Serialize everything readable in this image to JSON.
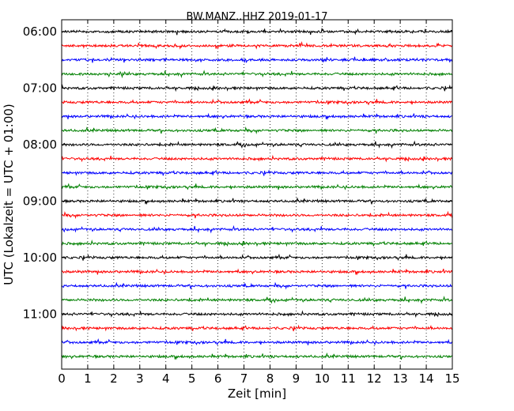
{
  "chart_data": {
    "type": "line",
    "title": "BW.MANZ..HHZ 2019-01-17",
    "xlabel": "Zeit  [min]",
    "ylabel": "UTC (Lokalzeit = UTC + 01:00)",
    "xlim": [
      0,
      15
    ],
    "x_ticks": [
      "0",
      "1",
      "2",
      "3",
      "4",
      "5",
      "6",
      "7",
      "8",
      "9",
      "10",
      "11",
      "12",
      "13",
      "14",
      "15"
    ],
    "y_tick_labels": [
      "06:00",
      "07:00",
      "08:00",
      "09:00",
      "10:00",
      "11:00"
    ],
    "grid": "vertical dotted",
    "series_colors": [
      "#000000",
      "#ff0000",
      "#0000ff",
      "#008000"
    ],
    "traces": [
      "06:00",
      "06:15",
      "06:30",
      "06:45",
      "07:00",
      "07:15",
      "07:30",
      "07:45",
      "08:00",
      "08:15",
      "08:30",
      "08:45",
      "09:00",
      "09:15",
      "09:30",
      "09:45",
      "10:00",
      "10:15",
      "10:30",
      "10:45",
      "11:00",
      "11:15",
      "11:30",
      "11:45"
    ]
  }
}
